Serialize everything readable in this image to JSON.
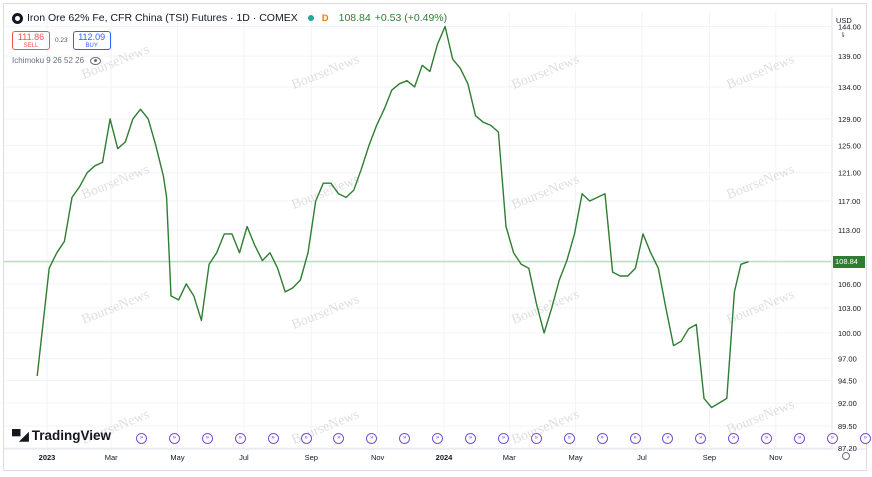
{
  "header": {
    "title": "Iron Ore 62% Fe, CFR China (TSI) Futures · 1D · COMEX",
    "delayed_flag": "D",
    "last_price": "108.84",
    "change": "+0.53 (+0.49%)",
    "status_color": "#26a69a"
  },
  "trade": {
    "sell_price": "111.86",
    "sell_label": "SELL",
    "spread": "0.23",
    "buy_price": "112.09",
    "buy_label": "BUY"
  },
  "indicator": {
    "label": "Ichimoku 9 26 52 26"
  },
  "watermark": "BourseNews",
  "logo": {
    "text": "TradingView"
  },
  "axis": {
    "currency": "USD",
    "caret": "⇂",
    "current_price_tag": "108.84"
  },
  "colors": {
    "line": "#2e7d32",
    "sell": "#ef5350",
    "buy": "#2962ff",
    "events": "#7b4fd6"
  },
  "event_marker_count": 23,
  "chart_data": {
    "type": "line",
    "title": "Iron Ore 62% Fe, CFR China (TSI) Futures · 1D · COMEX",
    "xlabel": "",
    "ylabel": "",
    "x_tick_labels": [
      "2023",
      "Mar",
      "May",
      "Jul",
      "Sep",
      "Nov",
      "2024",
      "Mar",
      "May",
      "Jul",
      "Sep",
      "Nov"
    ],
    "y_tick_labels": [
      "144.00",
      "139.00",
      "134.00",
      "129.00",
      "125.00",
      "121.00",
      "117.00",
      "113.00",
      "109.00",
      "106.00",
      "103.00",
      "100.00",
      "97.00",
      "94.50",
      "92.00",
      "89.50",
      "87.20"
    ],
    "y_scale": "log",
    "ylim": [
      87.2,
      146.5
    ],
    "grid": true,
    "series": [
      {
        "name": "",
        "x": [
          "2022-12-23",
          "2023-01-03",
          "2023-01-10",
          "2023-01-17",
          "2023-01-24",
          "2023-01-31",
          "2023-02-07",
          "2023-02-14",
          "2023-02-21",
          "2023-02-28",
          "2023-03-07",
          "2023-03-14",
          "2023-03-21",
          "2023-03-28",
          "2023-04-04",
          "2023-04-11",
          "2023-04-18",
          "2023-04-21",
          "2023-04-25",
          "2023-05-02",
          "2023-05-09",
          "2023-05-16",
          "2023-05-23",
          "2023-05-30",
          "2023-06-06",
          "2023-06-13",
          "2023-06-20",
          "2023-06-27",
          "2023-07-04",
          "2023-07-11",
          "2023-07-18",
          "2023-07-25",
          "2023-08-01",
          "2023-08-08",
          "2023-08-15",
          "2023-08-22",
          "2023-08-29",
          "2023-09-05",
          "2023-09-12",
          "2023-09-19",
          "2023-09-26",
          "2023-10-03",
          "2023-10-10",
          "2023-10-17",
          "2023-10-24",
          "2023-10-31",
          "2023-11-07",
          "2023-11-14",
          "2023-11-21",
          "2023-11-28",
          "2023-12-05",
          "2023-12-12",
          "2023-12-19",
          "2023-12-26",
          "2024-01-02",
          "2024-01-09",
          "2024-01-16",
          "2024-01-23",
          "2024-01-30",
          "2024-02-06",
          "2024-02-13",
          "2024-02-20",
          "2024-02-27",
          "2024-03-05",
          "2024-03-12",
          "2024-03-19",
          "2024-03-26",
          "2024-04-02",
          "2024-04-09",
          "2024-04-16",
          "2024-04-23",
          "2024-04-30",
          "2024-05-07",
          "2024-05-14",
          "2024-05-21",
          "2024-05-28",
          "2024-06-04",
          "2024-06-11",
          "2024-06-18",
          "2024-06-25",
          "2024-07-02",
          "2024-07-09",
          "2024-07-16",
          "2024-07-23",
          "2024-07-30",
          "2024-08-06",
          "2024-08-13",
          "2024-08-20",
          "2024-08-27",
          "2024-09-03",
          "2024-09-10",
          "2024-09-17",
          "2024-09-24",
          "2024-09-30",
          "2024-10-07"
        ],
        "y": [
          95.0,
          108.0,
          110.0,
          111.5,
          117.5,
          119.0,
          121.0,
          122.0,
          122.5,
          129.0,
          124.5,
          125.5,
          129.0,
          130.5,
          129.0,
          125.0,
          120.5,
          117.5,
          104.5,
          104.0,
          106.0,
          104.5,
          101.5,
          108.5,
          110.0,
          112.5,
          112.5,
          110.0,
          113.5,
          111.0,
          109.0,
          110.0,
          108.0,
          105.0,
          105.5,
          106.5,
          110.0,
          117.0,
          119.5,
          119.5,
          118.0,
          117.5,
          118.5,
          121.5,
          125.0,
          128.0,
          130.5,
          133.5,
          134.5,
          135.0,
          134.0,
          137.5,
          136.5,
          141.0,
          144.0,
          138.5,
          137.0,
          134.5,
          129.5,
          128.5,
          128.0,
          127.0,
          113.5,
          110.0,
          108.5,
          108.0,
          103.5,
          100.0,
          103.0,
          106.5,
          109.0,
          112.5,
          118.0,
          117.0,
          117.5,
          118.0,
          107.5,
          107.0,
          107.0,
          108.0,
          112.5,
          110.0,
          108.0,
          103.0,
          98.5,
          99.0,
          100.5,
          101.0,
          92.5,
          91.5,
          92.0,
          92.5,
          105.0,
          108.5,
          108.84
        ]
      }
    ]
  }
}
